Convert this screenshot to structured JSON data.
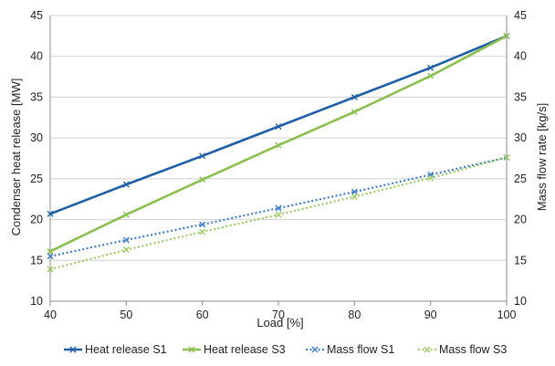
{
  "chart_data": {
    "type": "line",
    "title": "",
    "xlabel": "Load [%]",
    "ylabel": "Condenser heat release [MW]",
    "y2label": "Mass flow rate [kg/s]",
    "xlim": [
      40,
      100
    ],
    "ylim": [
      10,
      45
    ],
    "y2lim": [
      10,
      45
    ],
    "xticks": [
      40,
      50,
      60,
      70,
      80,
      90,
      100
    ],
    "yticks": [
      10,
      15,
      20,
      25,
      30,
      35,
      40,
      45
    ],
    "y2ticks": [
      10,
      15,
      20,
      25,
      30,
      35,
      40,
      45
    ],
    "grid": "horizontal",
    "legend_position": "bottom",
    "x": [
      40,
      50,
      60,
      70,
      80,
      90,
      100
    ],
    "series": [
      {
        "name": "Heat release S1",
        "axis": "left",
        "color": "#1f5fa8",
        "style": "solid",
        "marker": "x",
        "values": [
          20.7,
          24.3,
          27.8,
          31.4,
          35.0,
          38.6,
          42.5
        ]
      },
      {
        "name": "Heat release S3",
        "axis": "left",
        "color": "#8bbf4f",
        "style": "solid",
        "marker": "x",
        "values": [
          16.1,
          20.6,
          24.9,
          29.1,
          33.2,
          37.6,
          42.5
        ]
      },
      {
        "name": "Mass flow S1",
        "axis": "right",
        "color": "#3f7fd0",
        "style": "dotted",
        "marker": "x",
        "values": [
          15.5,
          17.5,
          19.4,
          21.4,
          23.4,
          25.5,
          27.6
        ]
      },
      {
        "name": "Mass flow S3",
        "axis": "right",
        "color": "#9ccc65",
        "style": "dotted",
        "marker": "x",
        "values": [
          13.9,
          16.3,
          18.5,
          20.6,
          22.8,
          25.1,
          27.6
        ]
      }
    ]
  }
}
